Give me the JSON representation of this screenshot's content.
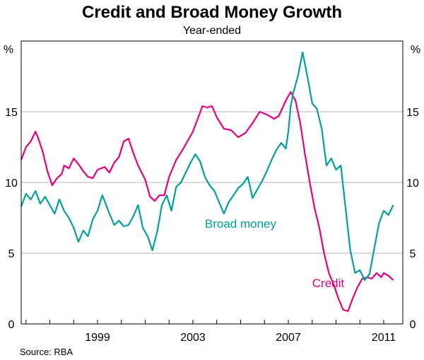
{
  "chart_data": {
    "type": "line",
    "title": "Credit and Broad Money Growth",
    "subtitle": "Year-ended",
    "y_unit_left": "%",
    "y_unit_right": "%",
    "ylim": [
      0,
      20
    ],
    "yticks": [
      0,
      5,
      10,
      15
    ],
    "ytick_labels": [
      "0",
      "5",
      "10",
      "15"
    ],
    "xlim": [
      1995.8,
      2011.8
    ],
    "xticks": [
      1999,
      2003,
      2007,
      2011
    ],
    "xtick_labels": [
      "1999",
      "2003",
      "2007",
      "2011"
    ],
    "x_minor_ticks": [
      1996,
      1997,
      1998,
      1999,
      2000,
      2001,
      2002,
      2003,
      2004,
      2005,
      2006,
      2007,
      2008,
      2009,
      2010,
      2011
    ],
    "grid": true,
    "source": "Source: RBA",
    "series": [
      {
        "name": "Credit",
        "label": "Credit",
        "color": "#e6007e",
        "label_x": 2008.0,
        "label_y": 2.6,
        "x": [
          1995.8,
          1996.0,
          1996.2,
          1996.4,
          1996.5,
          1996.7,
          1996.9,
          1997.1,
          1997.3,
          1997.5,
          1997.6,
          1997.8,
          1998.0,
          1998.2,
          1998.4,
          1998.6,
          1998.8,
          1999.0,
          1999.3,
          1999.5,
          1999.7,
          1999.9,
          2000.1,
          2000.3,
          2000.5,
          2000.7,
          2001.0,
          2001.2,
          2001.4,
          2001.6,
          2001.8,
          2002.0,
          2002.3,
          2002.6,
          2002.8,
          2003.0,
          2003.2,
          2003.4,
          2003.6,
          2003.8,
          2004.0,
          2004.3,
          2004.6,
          2004.9,
          2005.2,
          2005.5,
          2005.8,
          2006.1,
          2006.4,
          2006.6,
          2006.9,
          2007.1,
          2007.3,
          2007.5,
          2007.7,
          2007.9,
          2008.1,
          2008.3,
          2008.5,
          2008.7,
          2008.9,
          2009.1,
          2009.3,
          2009.5,
          2009.7,
          2009.9,
          2010.1,
          2010.3,
          2010.5,
          2010.7,
          2010.9,
          2011.0,
          2011.2,
          2011.4
        ],
        "values": [
          11.6,
          12.5,
          12.9,
          13.6,
          13.2,
          12.2,
          10.8,
          9.8,
          10.3,
          10.6,
          11.2,
          11.0,
          11.7,
          11.3,
          10.8,
          10.4,
          10.3,
          10.9,
          11.1,
          10.7,
          11.4,
          11.8,
          12.9,
          13.1,
          12.1,
          11.2,
          10.2,
          9.0,
          8.7,
          9.1,
          9.1,
          10.4,
          11.6,
          12.4,
          13.0,
          13.6,
          14.5,
          15.4,
          15.3,
          15.4,
          14.6,
          13.8,
          13.7,
          13.2,
          13.5,
          14.2,
          15.0,
          14.8,
          14.5,
          14.7,
          15.8,
          16.4,
          15.8,
          14.2,
          12.0,
          10.0,
          8.2,
          6.8,
          5.0,
          3.6,
          2.8,
          1.8,
          1.0,
          0.9,
          1.8,
          2.6,
          3.2,
          3.3,
          3.2,
          3.6,
          3.3,
          3.6,
          3.4,
          3.1
        ]
      },
      {
        "name": "Broad money",
        "label": "Broad money",
        "color": "#00a19a",
        "label_x": 2003.5,
        "label_y": 6.8,
        "x": [
          1995.8,
          1996.0,
          1996.2,
          1996.4,
          1996.6,
          1996.8,
          1997.0,
          1997.2,
          1997.4,
          1997.6,
          1997.8,
          1998.0,
          1998.2,
          1998.4,
          1998.6,
          1998.8,
          1999.0,
          1999.2,
          1999.5,
          1999.7,
          1999.9,
          2000.1,
          2000.3,
          2000.5,
          2000.7,
          2000.9,
          2001.1,
          2001.3,
          2001.5,
          2001.7,
          2001.9,
          2002.1,
          2002.3,
          2002.5,
          2002.7,
          2002.9,
          2003.1,
          2003.3,
          2003.5,
          2003.7,
          2003.9,
          2004.1,
          2004.3,
          2004.5,
          2004.7,
          2004.9,
          2005.1,
          2005.3,
          2005.5,
          2005.7,
          2005.9,
          2006.1,
          2006.3,
          2006.5,
          2006.7,
          2006.9,
          2007.0,
          2007.1,
          2007.2,
          2007.4,
          2007.6,
          2007.8,
          2008.0,
          2008.2,
          2008.4,
          2008.6,
          2008.8,
          2009.0,
          2009.2,
          2009.4,
          2009.6,
          2009.8,
          2010.0,
          2010.2,
          2010.4,
          2010.6,
          2010.8,
          2011.0,
          2011.2,
          2011.4
        ],
        "values": [
          8.3,
          9.2,
          8.8,
          9.4,
          8.5,
          9.0,
          8.4,
          7.8,
          8.8,
          8.0,
          7.5,
          6.8,
          5.8,
          6.6,
          6.2,
          7.4,
          8.0,
          9.1,
          7.8,
          7.0,
          7.3,
          6.9,
          7.0,
          7.6,
          8.4,
          6.8,
          6.2,
          5.2,
          6.5,
          8.4,
          9.1,
          8.0,
          9.7,
          10.0,
          10.7,
          11.4,
          12.0,
          11.5,
          10.4,
          9.8,
          9.4,
          8.6,
          7.8,
          8.6,
          9.1,
          9.6,
          9.9,
          10.4,
          8.9,
          9.5,
          10.1,
          10.8,
          11.6,
          12.3,
          12.8,
          12.4,
          13.6,
          15.4,
          16.3,
          17.5,
          19.2,
          17.5,
          15.6,
          15.2,
          13.8,
          11.2,
          11.7,
          10.9,
          11.2,
          8.2,
          5.2,
          3.6,
          3.8,
          3.1,
          3.5,
          5.3,
          7.1,
          8.0,
          7.7,
          8.4
        ]
      }
    ]
  }
}
